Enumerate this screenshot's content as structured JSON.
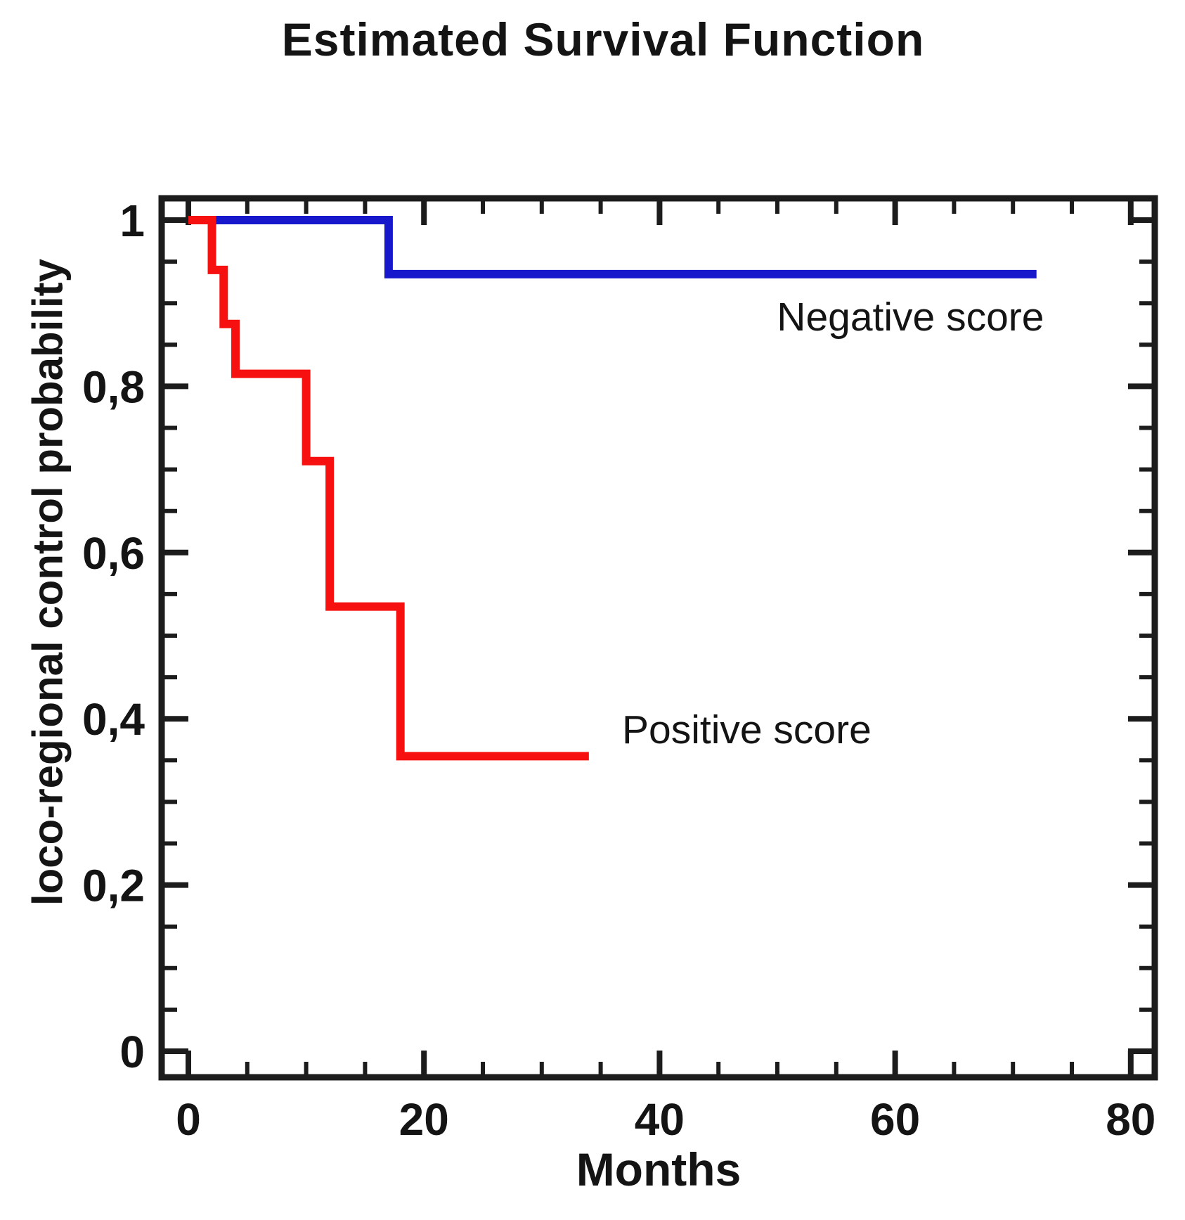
{
  "title": "Estimated Survival Function",
  "colors": {
    "ink": "#141414",
    "axis": "#1c1c1c",
    "negative_line": "#1717cb",
    "positive_line": "#f6100f"
  },
  "axes": {
    "x_label": "Months",
    "y_label": "loco-regional control probability",
    "x_ticks": [
      {
        "value": 0,
        "label": "0"
      },
      {
        "value": 20,
        "label": "20"
      },
      {
        "value": 40,
        "label": "40"
      },
      {
        "value": 60,
        "label": "60"
      },
      {
        "value": 80,
        "label": "80"
      }
    ],
    "y_ticks": [
      {
        "value": 0,
        "label": "0"
      },
      {
        "value": 0.2,
        "label": "0,2"
      },
      {
        "value": 0.4,
        "label": "0,4"
      },
      {
        "value": 0.6,
        "label": "0,6"
      },
      {
        "value": 0.8,
        "label": "0,8"
      },
      {
        "value": 1,
        "label": "1"
      }
    ],
    "x_minor_step": 5,
    "y_minor_step": 0.05
  },
  "chart_data": {
    "type": "line",
    "subtype": "kaplan-meier-step",
    "title": "Estimated Survival Function",
    "xlabel": "Months",
    "ylabel": "loco-regional control probability",
    "xlim": [
      0,
      82
    ],
    "ylim": [
      0,
      1
    ],
    "grid": false,
    "legend_position": "inline-annotations",
    "series": [
      {
        "name": "Negative score",
        "color": "#1717cb",
        "points": [
          [
            0,
            1
          ],
          [
            17,
            1
          ],
          [
            17,
            0.935
          ],
          [
            72,
            0.935
          ]
        ]
      },
      {
        "name": "Positive score",
        "color": "#f6100f",
        "points": [
          [
            0,
            1
          ],
          [
            2,
            1
          ],
          [
            2,
            0.94
          ],
          [
            3,
            0.94
          ],
          [
            3,
            0.875
          ],
          [
            4,
            0.875
          ],
          [
            4,
            0.815
          ],
          [
            10,
            0.815
          ],
          [
            10,
            0.71
          ],
          [
            12,
            0.71
          ],
          [
            12,
            0.535
          ],
          [
            18,
            0.535
          ],
          [
            18,
            0.355
          ],
          [
            34,
            0.355
          ]
        ]
      }
    ],
    "annotations": [
      {
        "text": "Negative score",
        "x_month": 61.3,
        "y_prob": 0.883
      },
      {
        "text": "Positive score",
        "x_month": 47.4,
        "y_prob": 0.387
      }
    ]
  }
}
